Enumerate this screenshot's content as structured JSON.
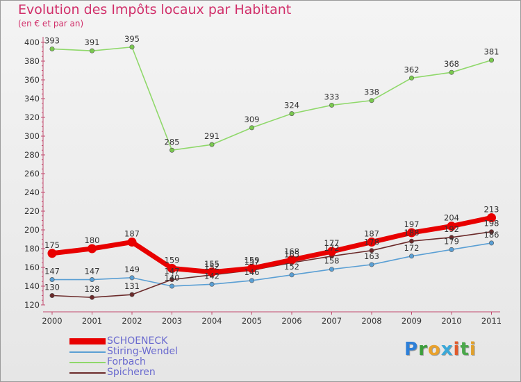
{
  "title": "Evolution des Impôts locaux par Habitant",
  "subtitle": "(en € et par an)",
  "logo": {
    "text": "Proxiti",
    "letter_colors": [
      "#2d7fd8",
      "#3a9e3a",
      "#e8a12c",
      "#3aa8d8",
      "#e05a2c",
      "#4aa84a",
      "#e0a02c"
    ]
  },
  "chart_data": {
    "type": "line",
    "title": "Evolution des Impôts locaux par Habitant",
    "subtitle": "(en € et par an)",
    "xlabel": "",
    "ylabel": "",
    "x": [
      "2000",
      "2001",
      "2002",
      "2003",
      "2004",
      "2005",
      "2006",
      "2007",
      "2008",
      "2009",
      "2010",
      "2011"
    ],
    "ylim": [
      120,
      400
    ],
    "yticks": [
      "120",
      "140",
      "160",
      "180",
      "200",
      "220",
      "240",
      "260",
      "280",
      "300",
      "320",
      "340",
      "360",
      "380",
      "400"
    ],
    "grid": false,
    "legend_position": "bottom-left",
    "series": [
      {
        "name": "SCHOENECK",
        "color": "#e80000",
        "marker_color": "#e80000",
        "values": [
          175,
          180,
          187,
          159,
          155,
          159,
          168,
          177,
          187,
          197,
          204,
          213
        ],
        "labels": [
          "175",
          "180",
          "187",
          "159",
          "155",
          "159",
          "168",
          "177",
          "187",
          "197",
          "204",
          "213"
        ]
      },
      {
        "name": "Stiring-Wendel",
        "color": "#5a9fd4",
        "marker_color": "#5a9fd4",
        "values": [
          147,
          147,
          149,
          140,
          142,
          146,
          152,
          158,
          163,
          172,
          179,
          186
        ],
        "labels": [
          "147",
          "147",
          "149",
          "140",
          "142",
          "146",
          "152",
          "158",
          "163",
          "172",
          "179",
          "186"
        ]
      },
      {
        "name": "Forbach",
        "color": "#8fd86a",
        "marker_color": "#7ac94f",
        "values": [
          393,
          391,
          395,
          285,
          291,
          309,
          324,
          333,
          338,
          362,
          368,
          381
        ],
        "labels": [
          "393",
          "391",
          "395",
          "285",
          "291",
          "309",
          "324",
          "333",
          "338",
          "362",
          "368",
          "381"
        ]
      },
      {
        "name": "Spicheren",
        "color": "#6b2a2a",
        "marker_color": "#6b2a2a",
        "values": [
          130,
          128,
          131,
          147,
          152,
          157,
          165,
          172,
          178,
          188,
          192,
          198
        ],
        "labels": [
          "130",
          "128",
          "131",
          "147",
          "152",
          "157",
          "165",
          "172",
          "178",
          "188",
          "192",
          "198"
        ]
      }
    ]
  }
}
